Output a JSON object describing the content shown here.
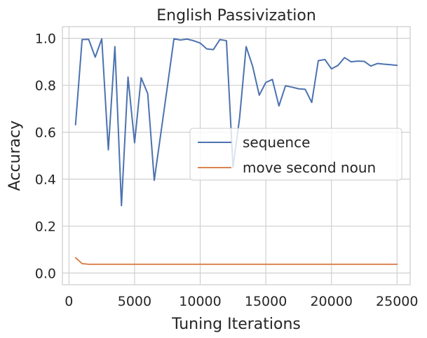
{
  "chart_data": {
    "type": "line",
    "title": "English Passivization",
    "xlabel": "Tuning Iterations",
    "ylabel": "Accuracy",
    "xlim": [
      -500,
      26000
    ],
    "ylim": [
      -0.05,
      1.05
    ],
    "xticks": [
      0,
      5000,
      10000,
      15000,
      20000,
      25000
    ],
    "yticks": [
      0.0,
      0.2,
      0.4,
      0.6,
      0.8,
      1.0
    ],
    "xtick_labels": [
      "0",
      "5000",
      "10000",
      "15000",
      "20000",
      "25000"
    ],
    "ytick_labels": [
      "0.0",
      "0.2",
      "0.4",
      "0.6",
      "0.8",
      "1.0"
    ],
    "grid": true,
    "legend_position": "center-right",
    "series": [
      {
        "name": "sequence",
        "color": "#4c72b0",
        "x": [
          500,
          1000,
          1500,
          2000,
          2500,
          3000,
          3500,
          4000,
          4500,
          5000,
          5500,
          6000,
          6500,
          7000,
          7500,
          8000,
          8500,
          9000,
          9500,
          10000,
          10500,
          11000,
          11500,
          12000,
          12500,
          13000,
          13500,
          14000,
          14500,
          15000,
          15500,
          16000,
          16500,
          17000,
          17500,
          18000,
          18500,
          19000,
          19500,
          20000,
          20500,
          21000,
          21500,
          22000,
          22500,
          23000,
          23500,
          24000,
          24500,
          25000
        ],
        "y": [
          0.632,
          0.995,
          0.996,
          0.92,
          0.998,
          0.525,
          0.965,
          0.287,
          0.835,
          0.555,
          0.832,
          0.765,
          0.395,
          0.595,
          0.795,
          0.998,
          0.993,
          0.997,
          0.99,
          0.98,
          0.955,
          0.952,
          0.995,
          0.99,
          0.45,
          0.66,
          0.965,
          0.88,
          0.758,
          0.812,
          0.825,
          0.712,
          0.798,
          0.792,
          0.785,
          0.783,
          0.727,
          0.905,
          0.91,
          0.87,
          0.885,
          0.918,
          0.9,
          0.903,
          0.902,
          0.882,
          0.893,
          0.89,
          0.888,
          0.885
        ]
      },
      {
        "name": "move second noun",
        "color": "#dd8452",
        "x": [
          500,
          1000,
          1500,
          2000,
          2500,
          3000,
          5000,
          10000,
          15000,
          20000,
          25000
        ],
        "y": [
          0.065,
          0.04,
          0.037,
          0.037,
          0.037,
          0.037,
          0.037,
          0.037,
          0.037,
          0.037,
          0.037
        ]
      }
    ]
  }
}
